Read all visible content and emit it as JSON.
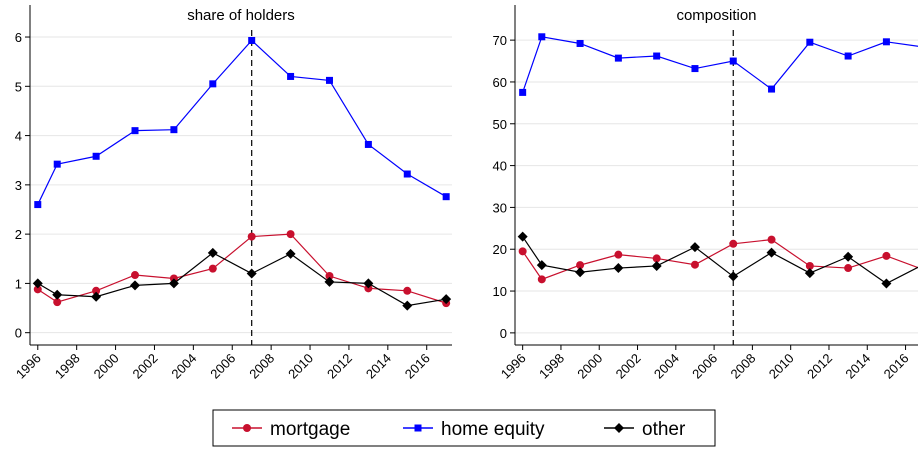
{
  "chart_data": [
    {
      "type": "line",
      "title": "share of holders",
      "x": [
        1996,
        1997,
        1999,
        2001,
        2003,
        2005,
        2007,
        2009,
        2011,
        2013,
        2015,
        2017
      ],
      "series": [
        {
          "name": "mortgage",
          "color": "#c8102e",
          "marker": "circle",
          "values": [
            0.88,
            0.62,
            0.85,
            1.17,
            1.1,
            1.3,
            1.95,
            2.0,
            1.15,
            0.9,
            0.85,
            0.6
          ]
        },
        {
          "name": "home equity",
          "color": "#0000ff",
          "marker": "square",
          "values": [
            2.6,
            3.42,
            3.58,
            4.1,
            4.12,
            5.05,
            5.93,
            5.2,
            5.12,
            3.82,
            3.22,
            2.76
          ]
        },
        {
          "name": "other",
          "color": "#000000",
          "marker": "diamond",
          "values": [
            1.0,
            0.77,
            0.73,
            0.96,
            1.0,
            1.62,
            1.2,
            1.6,
            1.03,
            1.0,
            0.55,
            0.68
          ]
        }
      ],
      "xlim": [
        1995.6,
        2017.3
      ],
      "xticks": [
        1996,
        1998,
        2000,
        2002,
        2004,
        2006,
        2008,
        2010,
        2012,
        2014,
        2016
      ],
      "ylim": [
        -0.25,
        6.65
      ],
      "yticks": [
        0,
        1,
        2,
        3,
        4,
        5,
        6
      ],
      "grid": true,
      "vline": 2007
    },
    {
      "type": "line",
      "title": "composition",
      "x": [
        1996,
        1997,
        1999,
        2001,
        2003,
        2005,
        2007,
        2009,
        2011,
        2013,
        2015,
        2017
      ],
      "series": [
        {
          "color": "#c8102e",
          "marker": "circle",
          "values": [
            19.5,
            12.8,
            16.2,
            18.7,
            17.8,
            16.3,
            21.3,
            22.3,
            16,
            15.5,
            18.4,
            15
          ]
        },
        {
          "color": "#0000ff",
          "marker": "square",
          "values": [
            57.5,
            70.8,
            69.2,
            65.7,
            66.2,
            63.2,
            65,
            58.3,
            69.5,
            66.2,
            69.6,
            68.3
          ]
        },
        {
          "color": "#000000",
          "marker": "diamond",
          "values": [
            23,
            16.2,
            14.5,
            15.5,
            16,
            20.5,
            13.5,
            19.2,
            14.3,
            18.2,
            11.8,
            16.5
          ]
        }
      ],
      "xlim": [
        1995.6,
        2016.65
      ],
      "xticks": [
        1996,
        1998,
        2000,
        2002,
        2004,
        2006,
        2008,
        2010,
        2012,
        2014,
        2016
      ],
      "ylim": [
        -2.9,
        78.4
      ],
      "yticks": [
        0,
        10,
        20,
        30,
        40,
        50,
        60,
        70
      ],
      "grid": true,
      "vline": 2007
    }
  ]
}
